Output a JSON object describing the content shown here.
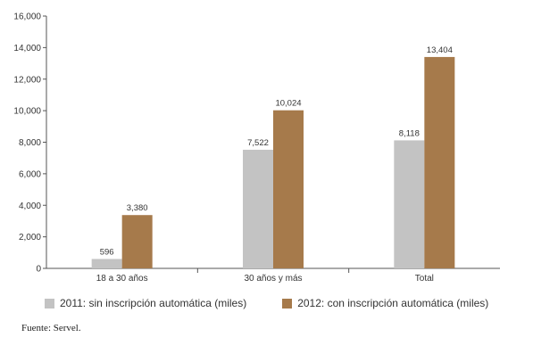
{
  "chart_data": {
    "type": "bar",
    "categories": [
      "18 a 30 años",
      "30 años y más",
      "Total"
    ],
    "series": [
      {
        "name": "2011: sin inscripción automática (miles)",
        "color": "#c3c3c3",
        "values": [
          596,
          7522,
          8118
        ],
        "labels": [
          "596",
          "7,522",
          "8,118"
        ]
      },
      {
        "name": "2012: con inscripción automática (miles)",
        "color": "#a67a4b",
        "values": [
          3380,
          10024,
          13404
        ],
        "labels": [
          "3,380",
          "10,024",
          "13,404"
        ]
      }
    ],
    "ylim": [
      0,
      16000
    ],
    "yticks": [
      0,
      2000,
      4000,
      6000,
      8000,
      10000,
      12000,
      14000,
      16000
    ],
    "ytick_labels": [
      "0",
      "2,000",
      "4,000",
      "6,000",
      "8,000",
      "10,000",
      "12,000",
      "14,000",
      "16,000"
    ],
    "grid": false,
    "legend_position": "bottom"
  },
  "source": "Fuente: Servel."
}
